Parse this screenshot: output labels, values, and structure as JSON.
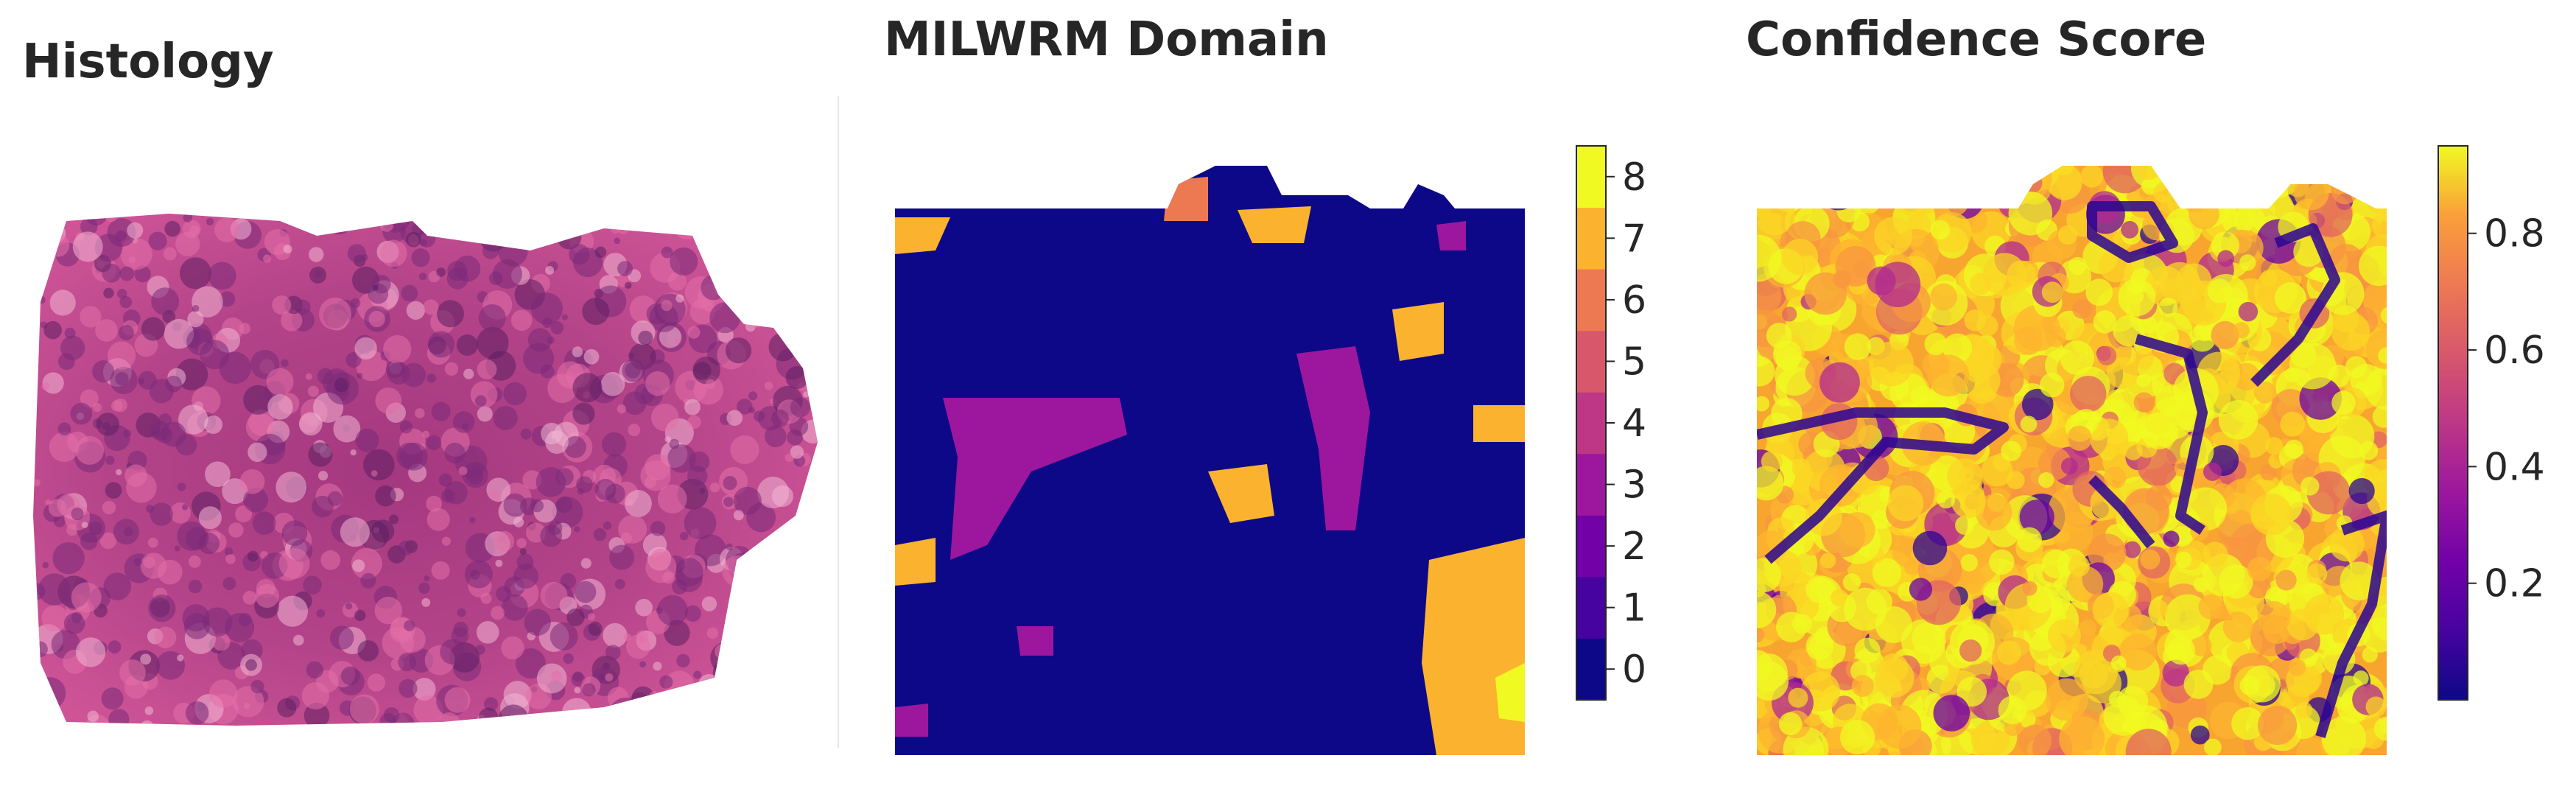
{
  "panels": {
    "histology": {
      "title": "Histology"
    },
    "domain": {
      "title": "MILWRM Domain"
    },
    "confidence": {
      "title": "Confidence Score"
    }
  },
  "chart_data": [
    {
      "type": "image",
      "title": "Histology",
      "description_colors": [
        "#c2468f",
        "#8e2f7f",
        "#e75a9e",
        "#f0a0c8"
      ]
    },
    {
      "type": "heatmap",
      "title": "MILWRM Domain",
      "colorscale": "plasma (discrete)",
      "colorbar": {
        "ticks": [
          0,
          1,
          2,
          3,
          4,
          5,
          6,
          7,
          8
        ],
        "range": [
          -0.5,
          8.5
        ]
      },
      "levels": {
        "0": "#0d0887",
        "1": "#46039f",
        "2": "#7201a8",
        "3": "#9c179e",
        "4": "#bd3786",
        "5": "#d8576b",
        "6": "#ed7953",
        "7": "#fbb32f",
        "8": "#f0f921"
      },
      "dominant_value": 0,
      "grid_on": false
    },
    {
      "type": "heatmap",
      "title": "Confidence Score",
      "colorscale": "plasma",
      "colorbar": {
        "ticks": [
          0.2,
          0.4,
          0.6,
          0.8
        ],
        "range": [
          0.0,
          0.95
        ]
      },
      "grid_on": false
    }
  ]
}
